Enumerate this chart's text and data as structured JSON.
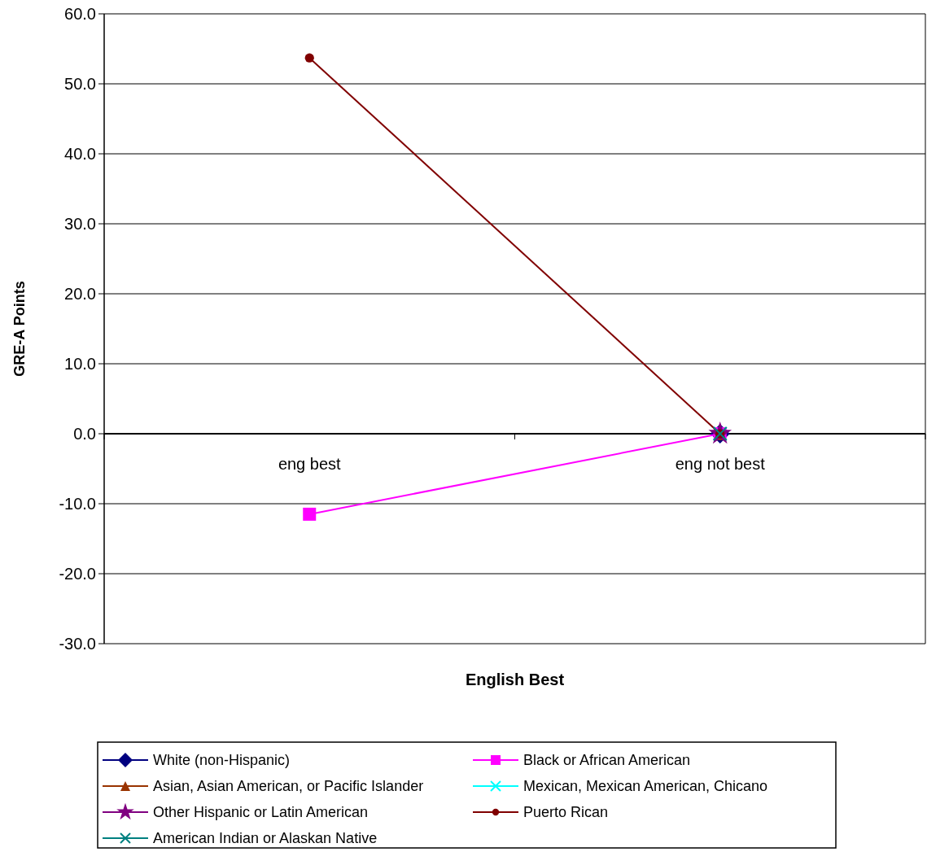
{
  "chart_data": {
    "type": "line",
    "xlabel": "English Best",
    "ylabel": "GRE-A Points",
    "categories": [
      "eng best",
      "eng not best"
    ],
    "ylim": [
      -30,
      60
    ],
    "yticks": [
      {
        "value": -30,
        "label": "-30.0"
      },
      {
        "value": -20,
        "label": "-20.0"
      },
      {
        "value": -10,
        "label": "-10.0"
      },
      {
        "value": 0,
        "label": "0.0"
      },
      {
        "value": 10,
        "label": "10.0"
      },
      {
        "value": 20,
        "label": "20.0"
      },
      {
        "value": 30,
        "label": "30.0"
      },
      {
        "value": 40,
        "label": "40.0"
      },
      {
        "value": 50,
        "label": "50.0"
      },
      {
        "value": 60,
        "label": "60.0"
      }
    ],
    "grid": "y",
    "legend": "bottom",
    "series": [
      {
        "name": "White (non-Hispanic)",
        "color": "#000080",
        "marker": "diamond",
        "values": [
          null,
          0
        ]
      },
      {
        "name": "Black or African American",
        "color": "#ff00ff",
        "marker": "square",
        "values": [
          -11.5,
          0
        ]
      },
      {
        "name": "Asian, Asian American, or Pacific Islander",
        "color": "#993300",
        "marker": "triangle",
        "values": [
          null,
          0
        ]
      },
      {
        "name": "Mexican, Mexican American, Chicano",
        "color": "#00ffff",
        "marker": "cross",
        "values": [
          null,
          0
        ]
      },
      {
        "name": "Other Hispanic or Latin American",
        "color": "#800080",
        "marker": "star",
        "values": [
          null,
          0
        ]
      },
      {
        "name": "Puerto Rican",
        "color": "#800000",
        "marker": "circle",
        "values": [
          53.7,
          0
        ]
      },
      {
        "name": "American Indian or Alaskan Native",
        "color": "#008080",
        "marker": "cross",
        "values": [
          null,
          0
        ]
      }
    ]
  }
}
